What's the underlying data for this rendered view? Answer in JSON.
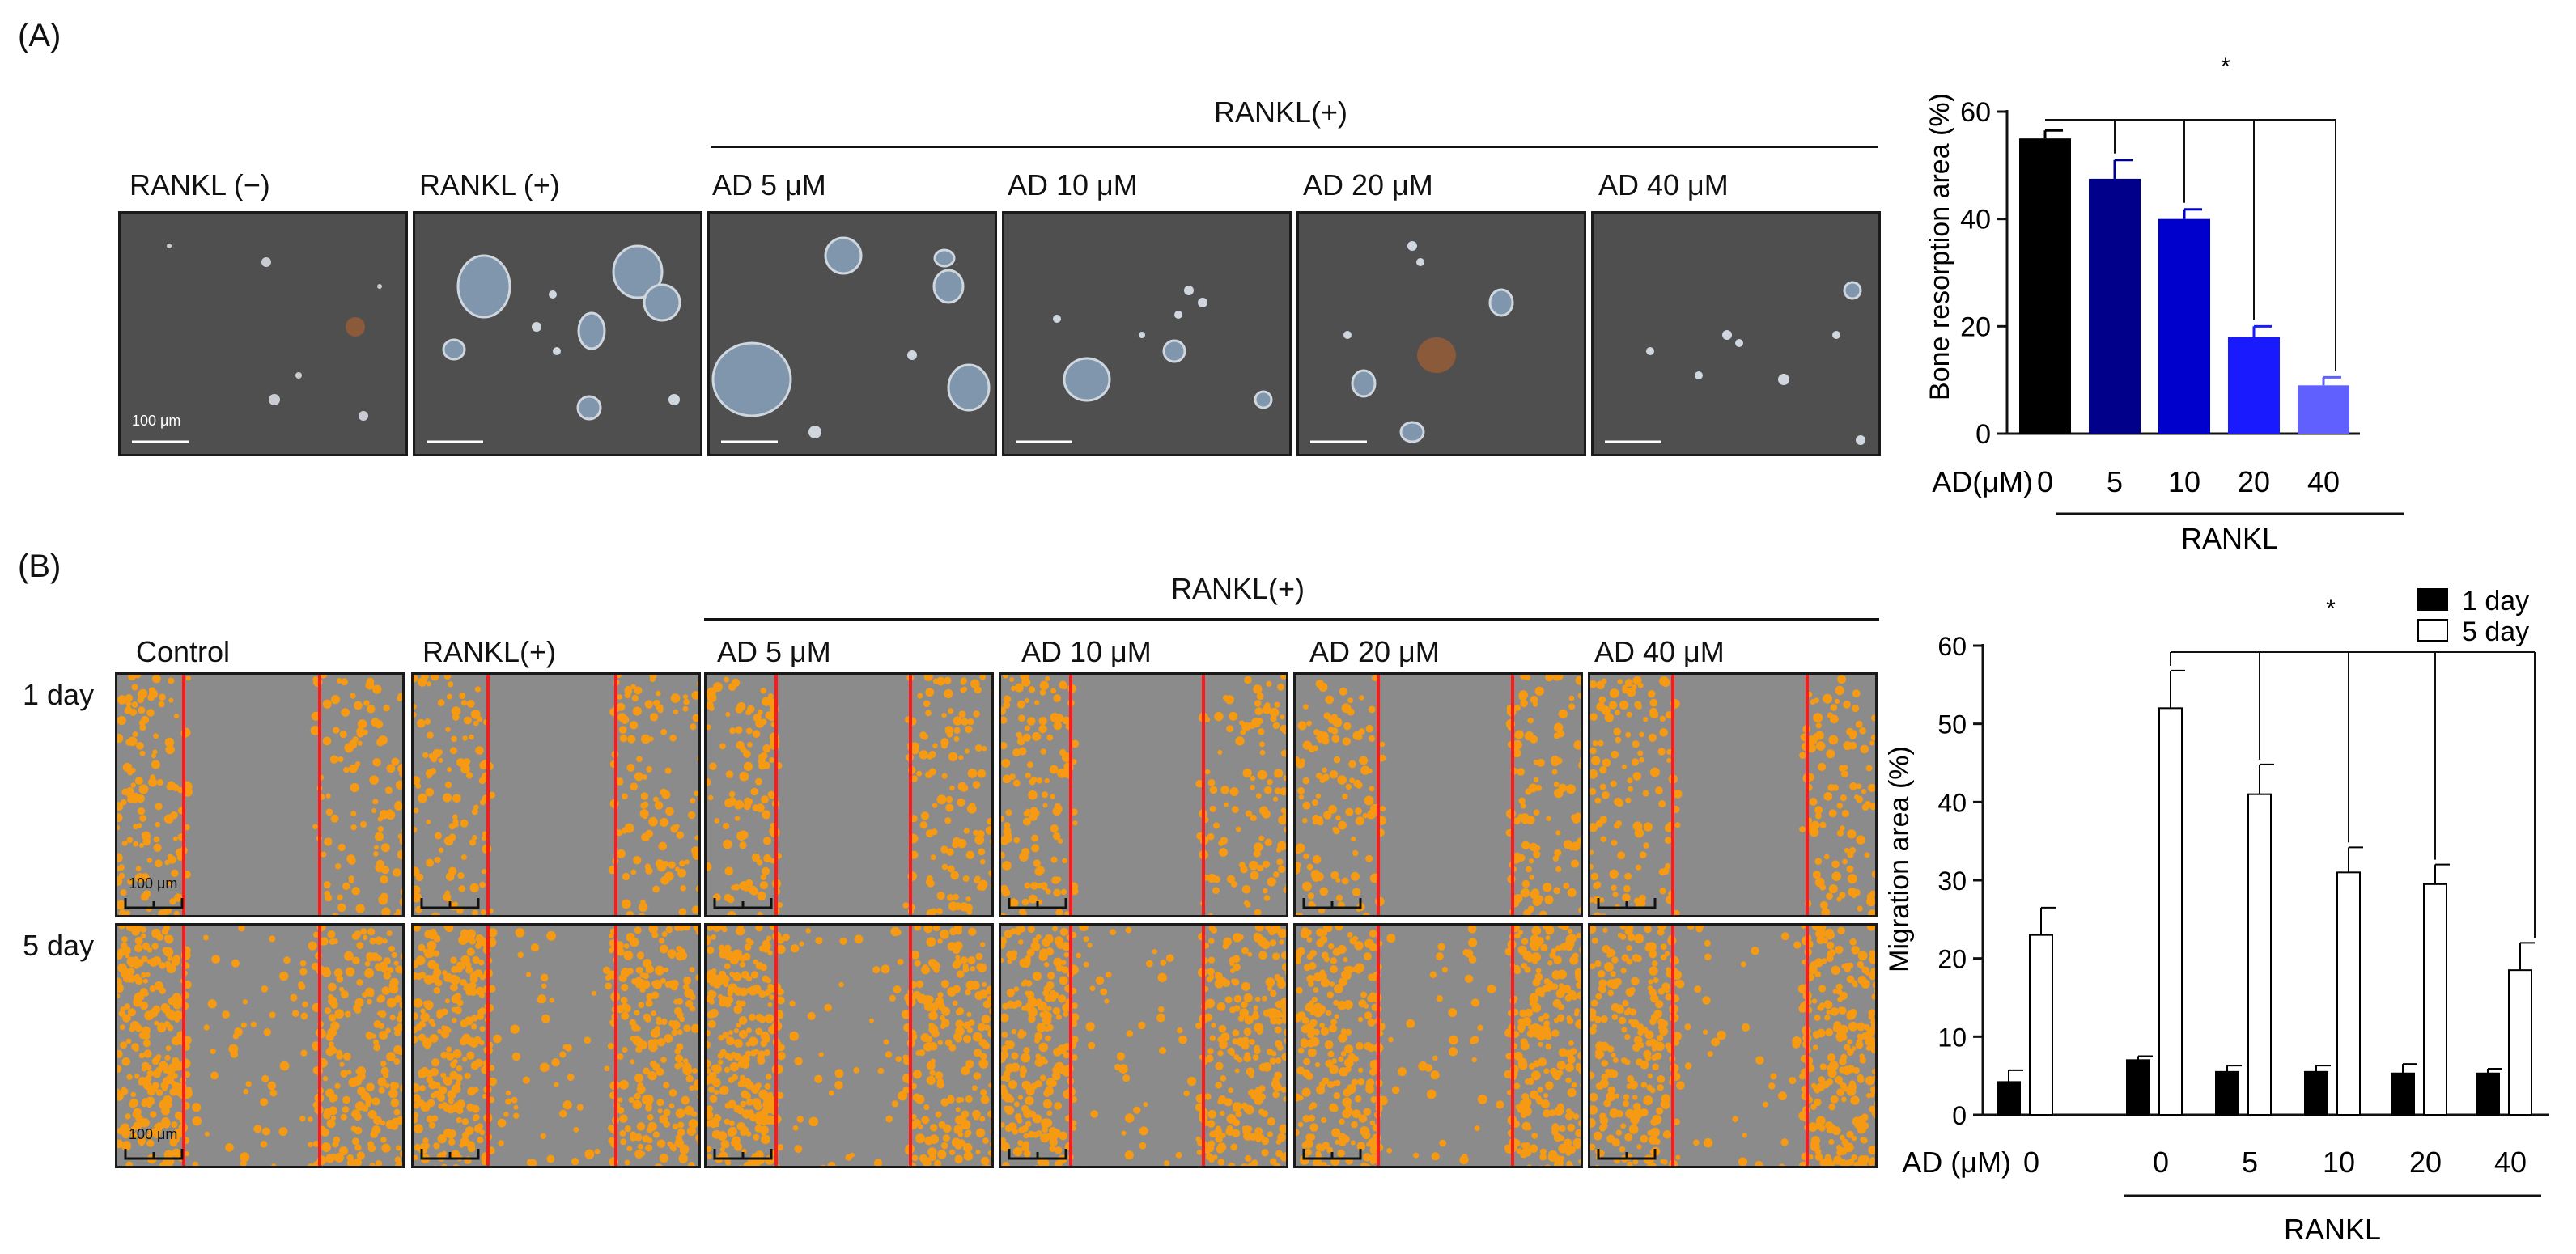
{
  "panel_a": {
    "letter": "(A)",
    "group_label": "RANKL(+)",
    "image_labels": [
      "RANKL (−)",
      "RANKL (+)",
      "AD 5 μM",
      "AD 10 μM",
      "AD 20 μM",
      "AD 40 μM"
    ],
    "scale_label": "100 μm"
  },
  "panel_b": {
    "letter": "(B)",
    "group_label": "RANKL(+)",
    "image_labels": [
      "Control",
      "RANKL(+)",
      "AD 5 μM",
      "AD 10 μM",
      "AD 20 μM",
      "AD 40 μM"
    ],
    "row_labels": [
      "1 day",
      "5 day"
    ],
    "scale_label": "100 μm"
  },
  "colors": {
    "gap_line": "#ff1a1a",
    "cells": "#f59a12",
    "migration_bg": "#8b8b8b",
    "resorption_bg": "#4f4f4f",
    "pit_fill": "#7f96ad"
  },
  "chart_data": [
    {
      "type": "bar",
      "title": "",
      "ylabel": "Bone resorption area (%)",
      "xlabel": "AD(μM)",
      "categories": [
        "0",
        "5",
        "10",
        "20",
        "40"
      ],
      "values": [
        55,
        47.5,
        40,
        18,
        9
      ],
      "errors": [
        1.5,
        3.5,
        1.8,
        2.0,
        1.5
      ],
      "bar_colors": [
        "#000000",
        "#00008b",
        "#0000cd",
        "#1a1aff",
        "#6060ff"
      ],
      "ylim": [
        0,
        60
      ],
      "yticks": [
        0,
        20,
        40,
        60
      ],
      "group_label": "RANKL",
      "significance": "*"
    },
    {
      "type": "bar",
      "title": "",
      "ylabel": "Migration area (%)",
      "xlabel": "AD (μM)",
      "categories": [
        "0",
        "0",
        "5",
        "10",
        "20",
        "40"
      ],
      "series": [
        {
          "name": "1 day",
          "values": [
            4.2,
            7,
            5.5,
            5.5,
            5.3,
            5.3
          ],
          "errors": [
            1.5,
            0.5,
            0.8,
            0.8,
            1.2,
            0.6
          ],
          "fill": "#000000"
        },
        {
          "name": "5 day",
          "values": [
            23,
            52,
            41,
            31,
            29.5,
            18.5
          ],
          "errors": [
            3.5,
            4.8,
            3.8,
            3.2,
            2.5,
            3.5
          ],
          "fill": "#ffffff"
        }
      ],
      "ylim": [
        0,
        60
      ],
      "yticks": [
        0,
        10,
        20,
        30,
        40,
        50,
        60
      ],
      "group_label": "RANKL",
      "significance": "*"
    }
  ]
}
